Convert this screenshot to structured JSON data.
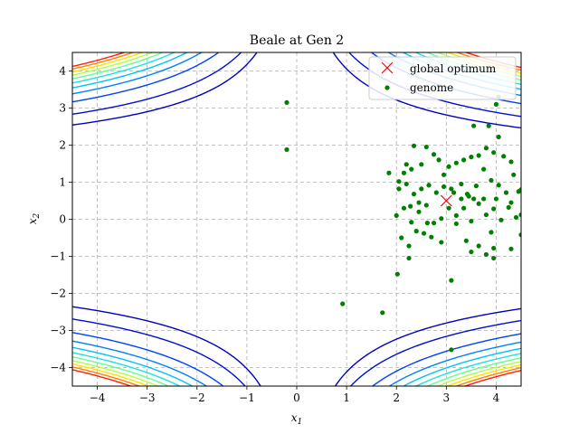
{
  "chart_data": {
    "type": "scatter",
    "title": "Beale at Gen 2",
    "xlabel_base": "x",
    "xlabel_sub": "1",
    "ylabel_base": "x",
    "ylabel_sub": "2",
    "xlim": [
      -4.5,
      4.5
    ],
    "ylim": [
      -4.5,
      4.5
    ],
    "xticks": [
      -4,
      -3,
      -2,
      -1,
      0,
      1,
      2,
      3,
      4
    ],
    "yticks": [
      -4,
      -3,
      -2,
      -1,
      0,
      1,
      2,
      3,
      4
    ],
    "grid": true,
    "legend_position": "top-right",
    "contour_function": "beale",
    "contour_levels": [
      5000,
      10000,
      20000,
      30000,
      40000,
      50000,
      60000,
      70000,
      80000,
      90000,
      100000
    ],
    "contour_colors": [
      "#0000c0",
      "#0010d0",
      "#0040ff",
      "#0080ff",
      "#00c0ff",
      "#20e0e0",
      "#60ff90",
      "#b0ff40",
      "#ffe000",
      "#ff8000",
      "#ff2000"
    ],
    "series": [
      {
        "name": "global optimum",
        "marker": "x",
        "color": "#ff0000",
        "points": [
          [
            3.0,
            0.5
          ]
        ]
      },
      {
        "name": "genome",
        "marker": "dot",
        "color": "#008000",
        "points": [
          [
            -0.2,
            3.15
          ],
          [
            -0.2,
            1.88
          ],
          [
            0.92,
            -2.28
          ],
          [
            1.72,
            -2.52
          ],
          [
            2.02,
            -1.48
          ],
          [
            3.1,
            -3.52
          ],
          [
            3.1,
            -1.65
          ],
          [
            4.05,
            3.3
          ],
          [
            4.0,
            3.1
          ],
          [
            3.55,
            2.52
          ],
          [
            3.85,
            2.52
          ],
          [
            4.05,
            2.22
          ],
          [
            1.85,
            1.25
          ],
          [
            2.2,
            1.48
          ],
          [
            2.35,
            1.98
          ],
          [
            2.6,
            1.95
          ],
          [
            2.15,
            1.25
          ],
          [
            2.3,
            1.35
          ],
          [
            2.5,
            1.48
          ],
          [
            2.75,
            1.75
          ],
          [
            2.85,
            1.6
          ],
          [
            3.05,
            1.42
          ],
          [
            3.2,
            1.52
          ],
          [
            3.35,
            1.6
          ],
          [
            3.5,
            1.68
          ],
          [
            3.65,
            1.72
          ],
          [
            3.8,
            1.92
          ],
          [
            3.95,
            1.8
          ],
          [
            4.15,
            1.7
          ],
          [
            4.3,
            1.55
          ],
          [
            2.05,
            0.82
          ],
          [
            2.2,
            0.95
          ],
          [
            2.35,
            0.68
          ],
          [
            2.5,
            0.82
          ],
          [
            2.65,
            0.92
          ],
          [
            2.8,
            0.72
          ],
          [
            2.95,
            0.88
          ],
          [
            3.15,
            0.72
          ],
          [
            3.3,
            0.95
          ],
          [
            3.45,
            0.62
          ],
          [
            3.6,
            0.9
          ],
          [
            3.75,
            0.55
          ],
          [
            3.9,
            1.05
          ],
          [
            4.05,
            0.92
          ],
          [
            4.2,
            0.72
          ],
          [
            4.35,
            1.2
          ],
          [
            4.45,
            0.75
          ],
          [
            4.5,
            0.8
          ],
          [
            2.0,
            0.1
          ],
          [
            2.15,
            0.3
          ],
          [
            2.3,
            -0.08
          ],
          [
            2.45,
            0.2
          ],
          [
            2.6,
            0.38
          ],
          [
            2.75,
            -0.1
          ],
          [
            2.9,
            0.02
          ],
          [
            3.05,
            0.3
          ],
          [
            3.2,
            0.1
          ],
          [
            3.35,
            0.3
          ],
          [
            3.5,
            -0.05
          ],
          [
            3.65,
            0.42
          ],
          [
            3.8,
            0.12
          ],
          [
            3.95,
            0.28
          ],
          [
            4.1,
            -0.02
          ],
          [
            4.25,
            0.32
          ],
          [
            4.4,
            0.05
          ],
          [
            4.5,
            0.12
          ],
          [
            2.1,
            -0.5
          ],
          [
            2.25,
            -0.72
          ],
          [
            2.4,
            -0.32
          ],
          [
            2.55,
            -0.38
          ],
          [
            2.7,
            -0.48
          ],
          [
            2.9,
            -0.62
          ],
          [
            3.4,
            -0.58
          ],
          [
            3.5,
            -0.88
          ],
          [
            3.65,
            -0.72
          ],
          [
            3.8,
            -0.95
          ],
          [
            3.95,
            -0.78
          ],
          [
            4.3,
            -0.8
          ],
          [
            4.5,
            -0.42
          ],
          [
            2.25,
            -1.05
          ],
          [
            3.95,
            -1.05
          ],
          [
            2.28,
            0.35
          ],
          [
            2.45,
            0.45
          ],
          [
            3.55,
            0.55
          ],
          [
            3.42,
            0.68
          ],
          [
            3.3,
            0.55
          ],
          [
            4.0,
            0.55
          ],
          [
            3.1,
            0.82
          ],
          [
            3.75,
            1.35
          ],
          [
            2.95,
            1.2
          ],
          [
            2.05,
            1.02
          ],
          [
            4.3,
            0.45
          ],
          [
            3.2,
            -0.12
          ],
          [
            3.9,
            -0.35
          ],
          [
            2.62,
            -0.1
          ]
        ]
      }
    ]
  }
}
